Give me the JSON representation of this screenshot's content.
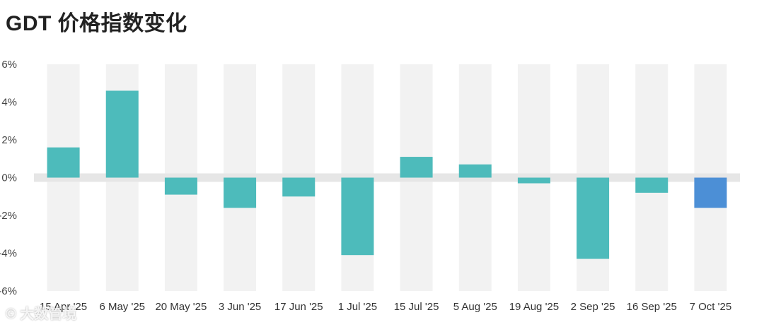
{
  "title": "GDT 价格指数变化",
  "watermark": "© 大数管境",
  "colors": {
    "bar": "#4dbbbb",
    "bar_highlight": "#4c8fd6",
    "band": "#f2f2f2",
    "zero_band": "#e6e6e6"
  },
  "chart_data": {
    "type": "bar",
    "title": "GDT 价格指数变化",
    "categories": [
      "15 Apr '25",
      "6 May '25",
      "20 May '25",
      "3 Jun '25",
      "17 Jun '25",
      "1 Jul '25",
      "15 Jul '25",
      "5 Aug '25",
      "19 Aug '25",
      "2 Sep '25",
      "16 Sep '25",
      "7 Oct '25"
    ],
    "values": [
      1.6,
      4.6,
      -0.9,
      -1.6,
      -1.0,
      -4.1,
      1.1,
      0.7,
      -0.3,
      -4.3,
      -0.8,
      -1.6
    ],
    "highlight_index": 11,
    "ylim": [
      -6,
      6
    ],
    "yticks": [
      6,
      4,
      2,
      0,
      -2,
      -4,
      -6
    ],
    "ytick_labels": [
      "6%",
      "4%",
      "2%",
      "0%",
      "-2%",
      "-4%",
      "-6%"
    ],
    "xlabel": "",
    "ylabel": "",
    "grid": false,
    "legend": "none"
  }
}
